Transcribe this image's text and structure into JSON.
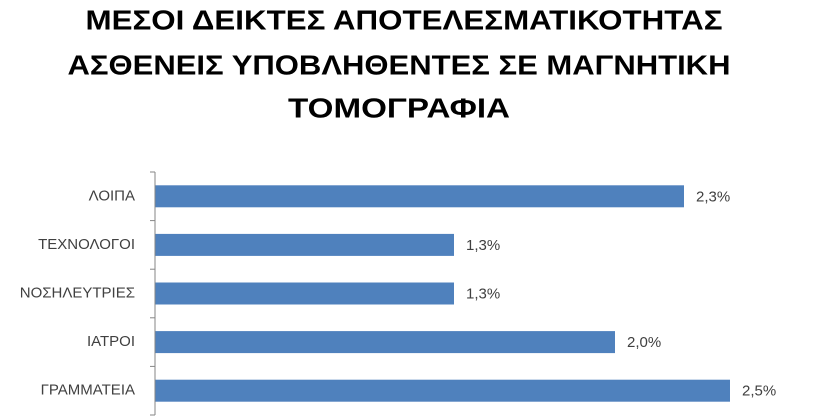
{
  "chart_data": {
    "type": "hbar",
    "title": [
      "ΜΕΣΟΙ ΔΕΙΚΤΕΣ ΑΠΟΤΕΛΕΣΜΑΤΙΚΟΤΗΤΑΣ",
      "ΑΣΘΕΝΕΙΣ ΥΠΟΒΛΗΘΕΝΤΕΣ ΣΕ ΜΑΓΝΗΤΙΚΗ",
      "ΤΟΜΟΓΡΑΦΙΑ"
    ],
    "categories": [
      "ΛΟΙΠΑ",
      "ΤΕΧΝΟΛΟΓΟΙ",
      "ΝΟΣΗΛΕΥΤΡΙΕΣ",
      "ΙΑΤΡΟΙ",
      "ΓΡΑΜΜΑΤΕΙΑ"
    ],
    "values": [
      2.3,
      1.3,
      1.3,
      2.0,
      2.5
    ],
    "value_labels": [
      "2,3%",
      "1,3%",
      "1,3%",
      "2,0%",
      "2,5%"
    ],
    "color": "#4f81bd",
    "xlim": [
      0,
      2.5
    ]
  }
}
